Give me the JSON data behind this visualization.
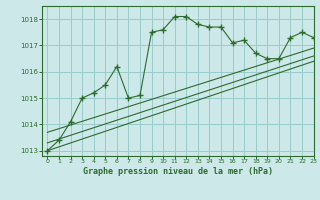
{
  "title": "Graphe pression niveau de la mer (hPa)",
  "xlim": [
    -0.5,
    23
  ],
  "ylim": [
    1012.8,
    1018.5
  ],
  "yticks": [
    1013,
    1014,
    1015,
    1016,
    1017,
    1018
  ],
  "xticks": [
    0,
    1,
    2,
    3,
    4,
    5,
    6,
    7,
    8,
    9,
    10,
    11,
    12,
    13,
    14,
    15,
    16,
    17,
    18,
    19,
    20,
    21,
    22,
    23
  ],
  "bg_color": "#cce8e8",
  "grid_color": "#99cccc",
  "line_color": "#2d6b2d",
  "main_line": {
    "x": [
      0,
      1,
      2,
      3,
      4,
      5,
      6,
      7,
      8,
      9,
      10,
      11,
      12,
      13,
      14,
      15,
      16,
      17,
      18,
      19,
      20,
      21,
      22,
      23
    ],
    "y": [
      1013.0,
      1013.4,
      1014.1,
      1015.0,
      1015.2,
      1015.5,
      1016.2,
      1015.0,
      1015.1,
      1017.5,
      1017.6,
      1018.1,
      1018.1,
      1017.8,
      1017.7,
      1017.7,
      1017.1,
      1017.2,
      1016.7,
      1016.5,
      1016.5,
      1017.3,
      1017.5,
      1017.3
    ]
  },
  "trend_lines": [
    {
      "x": [
        0,
        23
      ],
      "y": [
        1013.0,
        1016.4
      ]
    },
    {
      "x": [
        0,
        23
      ],
      "y": [
        1013.3,
        1016.6
      ]
    },
    {
      "x": [
        0,
        23
      ],
      "y": [
        1013.7,
        1016.9
      ]
    }
  ]
}
